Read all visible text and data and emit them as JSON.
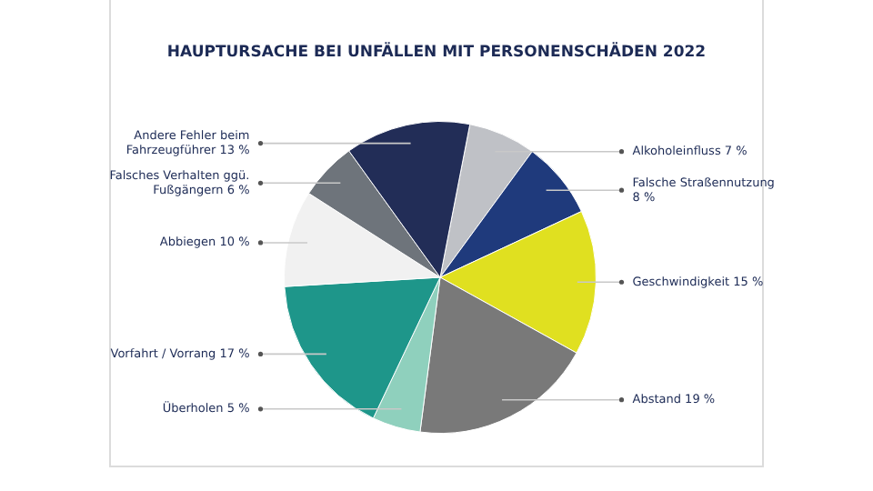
{
  "chart_data": {
    "type": "pie",
    "title": "HAUPTURSACHE BEI UNFÄLLEN MIT PERSONENSCHÄDEN 2022",
    "categories": [
      "Alkoholeinfluss",
      "Falsche Straßennutzung",
      "Geschwindigkeit",
      "Abstand",
      "Überholen",
      "Vorfahrt / Vorrang",
      "Abbiegen",
      "Falsches Verhalten ggü. Fußgängern",
      "Andere Fehler beim Fahrzeugführer"
    ],
    "values": [
      7,
      8,
      15,
      19,
      5,
      17,
      10,
      6,
      13
    ],
    "value_labels": [
      "7 %",
      "8 %",
      "15 %",
      "19 %",
      "5 %",
      "17 %",
      "10 %",
      "6 %",
      "13 %"
    ],
    "colors": [
      "#bfc1c6",
      "#1f3a7c",
      "#e0e020",
      "#797979",
      "#8fd0bd",
      "#1e968a",
      "#f1f1f1",
      "#6e747b",
      "#222d57"
    ],
    "legend": false
  }
}
